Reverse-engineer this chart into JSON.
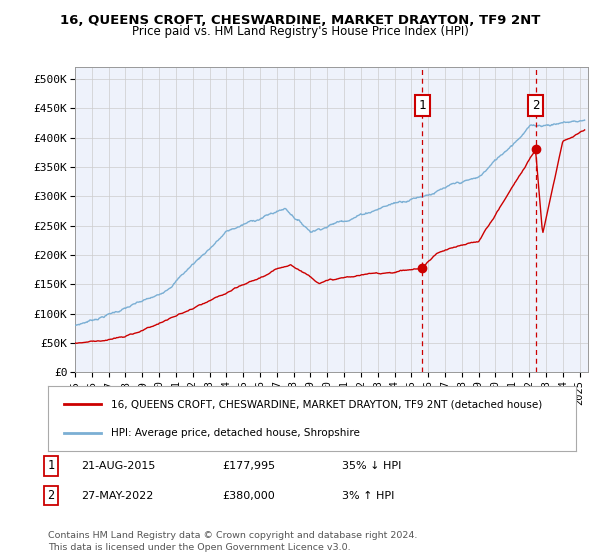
{
  "title": "16, QUEENS CROFT, CHESWARDINE, MARKET DRAYTON, TF9 2NT",
  "subtitle": "Price paid vs. HM Land Registry's House Price Index (HPI)",
  "ylabel_ticks": [
    "£0",
    "£50K",
    "£100K",
    "£150K",
    "£200K",
    "£250K",
    "£300K",
    "£350K",
    "£400K",
    "£450K",
    "£500K"
  ],
  "ytick_values": [
    0,
    50000,
    100000,
    150000,
    200000,
    250000,
    300000,
    350000,
    400000,
    450000,
    500000
  ],
  "ylim": [
    0,
    520000
  ],
  "xlim_start": 1995.0,
  "xlim_end": 2025.5,
  "hpi_color": "#7bafd4",
  "price_color": "#cc0000",
  "marker1_date": 2015.64,
  "marker1_price": 177995,
  "marker2_date": 2022.38,
  "marker2_price": 380000,
  "legend_line1": "16, QUEENS CROFT, CHESWARDINE, MARKET DRAYTON, TF9 2NT (detached house)",
  "legend_line2": "HPI: Average price, detached house, Shropshire",
  "footer": "Contains HM Land Registry data © Crown copyright and database right 2024.\nThis data is licensed under the Open Government Licence v3.0.",
  "bg_color": "#eef2fb",
  "grid_color": "#cccccc",
  "xtick_years": [
    1995,
    1996,
    1997,
    1998,
    1999,
    2000,
    2001,
    2002,
    2003,
    2004,
    2005,
    2006,
    2007,
    2008,
    2009,
    2010,
    2011,
    2012,
    2013,
    2014,
    2015,
    2016,
    2017,
    2018,
    2019,
    2020,
    2021,
    2022,
    2023,
    2024,
    2025
  ]
}
